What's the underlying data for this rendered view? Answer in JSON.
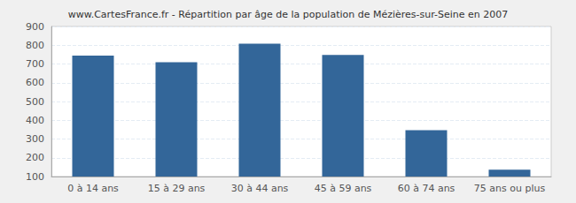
{
  "chart_data": {
    "type": "bar",
    "title": "www.CartesFrance.fr - Répartition par âge de la population de Mézières-sur-Seine en 2007",
    "categories": [
      "0 à 14 ans",
      "15 à 29 ans",
      "30 à 44 ans",
      "45 à 59 ans",
      "60 à 74 ans",
      "75 ans ou plus"
    ],
    "values": [
      745,
      710,
      808,
      748,
      347,
      137
    ],
    "color": "#336699",
    "ylim": [
      100,
      900
    ],
    "yticks": [
      100,
      200,
      300,
      400,
      500,
      600,
      700,
      800,
      900
    ],
    "grid": true
  }
}
